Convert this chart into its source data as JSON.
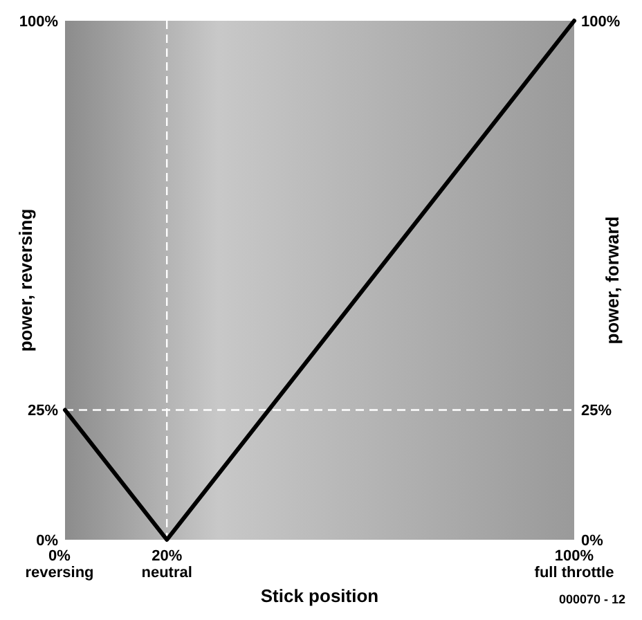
{
  "chart_data": {
    "type": "line",
    "xlabel": "Stick position",
    "ylabel": "power, reversing",
    "y2label": "power, forward",
    "x": [
      0,
      20,
      100
    ],
    "series": [
      {
        "color": "#000000",
        "values": [
          25,
          0,
          100
        ]
      }
    ],
    "xlim": [
      0,
      100
    ],
    "ylim": [
      0,
      100
    ],
    "y2lim": [
      0,
      100
    ],
    "xticks": [
      {
        "value": 0,
        "label": "0%\nreversing"
      },
      {
        "value": 20,
        "label": "20%\nneutral"
      },
      {
        "value": 100,
        "label": "100%\nfull throttle"
      }
    ],
    "yticks": [
      {
        "value": 0,
        "label": "0%"
      },
      {
        "value": 25,
        "label": "25%"
      },
      {
        "value": 100,
        "label": "100%"
      }
    ],
    "y2ticks": [
      {
        "value": 0,
        "label": "0%"
      },
      {
        "value": 25,
        "label": "25%"
      },
      {
        "value": 100,
        "label": "100%"
      }
    ],
    "ref_lines": [
      {
        "axis": "x",
        "value": 20,
        "color": "#ffffff",
        "line_style": "dashed"
      },
      {
        "axis": "y",
        "value": 25,
        "color": "#ffffff",
        "line_style": "dashed"
      }
    ],
    "annotations": [
      "000070 - 12"
    ],
    "grid": false,
    "marker": "none",
    "line_style": "solid"
  }
}
